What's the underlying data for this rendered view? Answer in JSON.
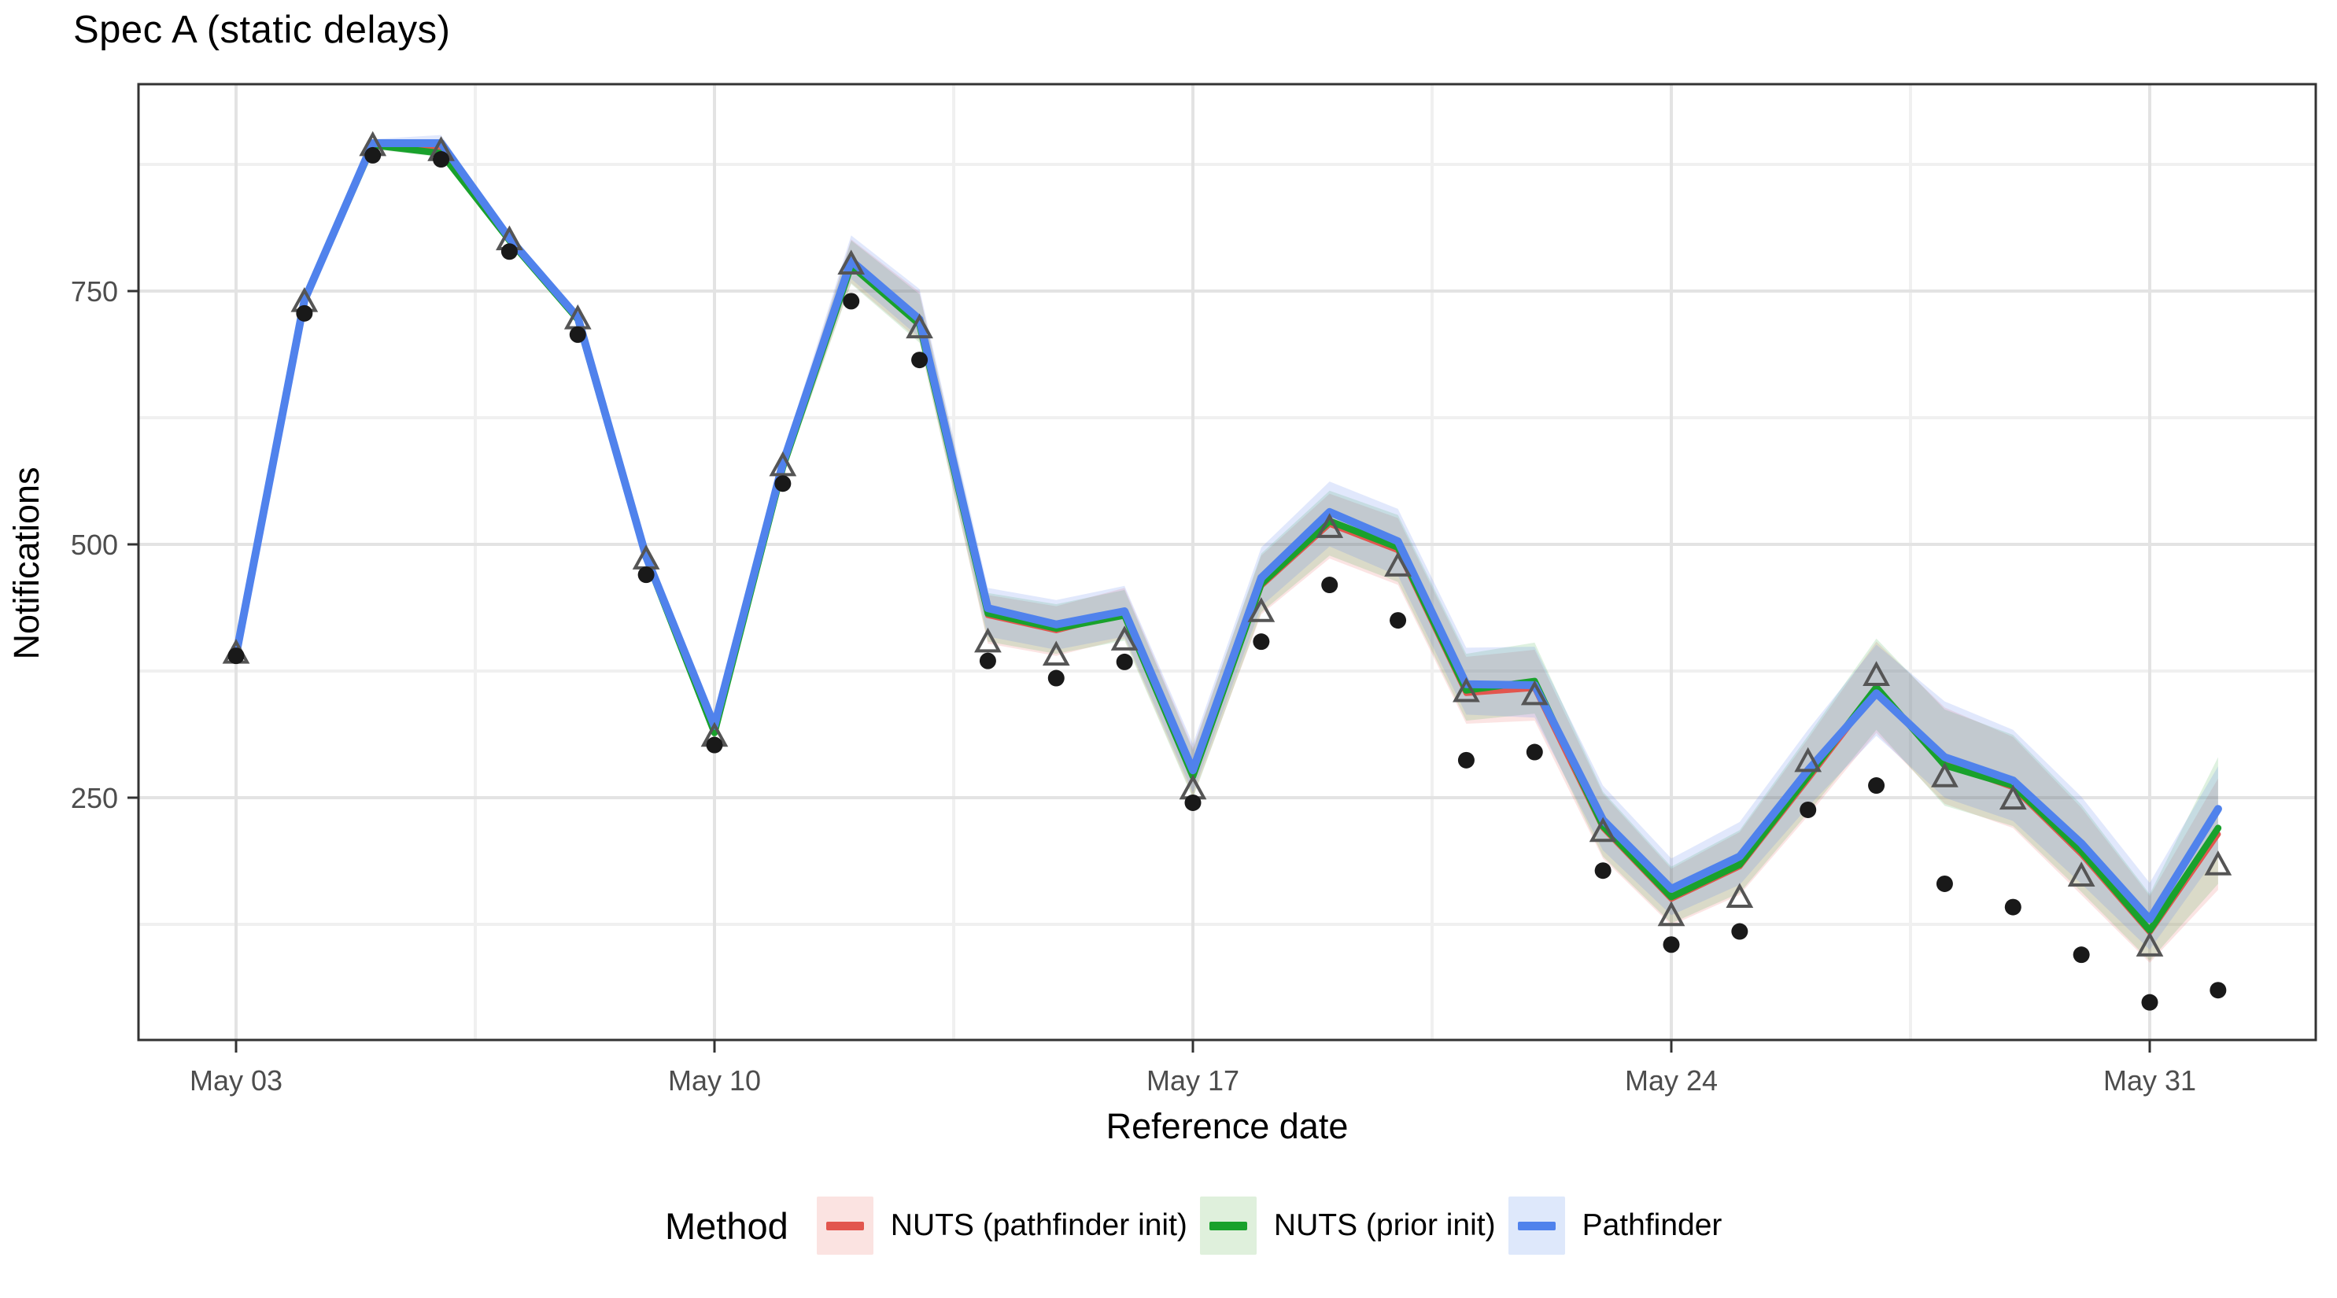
{
  "page": {
    "title": "Spec A (static delays)"
  },
  "chart_data": {
    "type": "line",
    "title": "Spec A (static delays)",
    "xlabel": "Reference date",
    "ylabel": "Notifications",
    "legend_title": "Method",
    "legend_position": "bottom",
    "grid": true,
    "ylim": [
      11,
      954
    ],
    "y_major_ticks": [
      250,
      500,
      750
    ],
    "y_minor_gridlines": [
      125,
      375,
      625,
      875
    ],
    "x_tick_labels": [
      "May 03",
      "May 10",
      "May 17",
      "May 24",
      "May 31"
    ],
    "x_tick_day_indices": [
      0,
      7,
      14,
      21,
      28
    ],
    "x_minor_day_offsets": [
      3.5,
      10.5,
      17.5,
      24.5
    ],
    "days": [
      "May 03",
      "May 04",
      "May 05",
      "May 06",
      "May 07",
      "May 08",
      "May 09",
      "May 10",
      "May 11",
      "May 12",
      "May 13",
      "May 14",
      "May 15",
      "May 16",
      "May 17",
      "May 18",
      "May 19",
      "May 20",
      "May 21",
      "May 22",
      "May 23",
      "May 24",
      "May 25",
      "May 26",
      "May 27",
      "May 28",
      "May 29",
      "May 30",
      "May 31",
      "Jun 01"
    ],
    "points": {
      "dots_name": "observed-notifications-dots",
      "dots": [
        390,
        728,
        884,
        880,
        789,
        707,
        470,
        302,
        560,
        740,
        682,
        385,
        368,
        384,
        245,
        404,
        460,
        425,
        287,
        295,
        178,
        105,
        118,
        238,
        262,
        165,
        142,
        95,
        48,
        60
      ],
      "triangles_name": "final-counts-triangles",
      "triangles": [
        392,
        739,
        893,
        888,
        800,
        722,
        485,
        310,
        577,
        776,
        713,
        403,
        390,
        405,
        258,
        433,
        516,
        478,
        354,
        351,
        216,
        133,
        151,
        285,
        370,
        270,
        248,
        172,
        103,
        183
      ]
    },
    "series": [
      {
        "name": "NUTS (pathfinder init)",
        "color": "#E2564E",
        "ribbon_fill": "rgba(228,86,78,0.16)",
        "legend_fill": "#FBE3E1",
        "line_width": 7,
        "values": [
          391,
          741,
          895,
          890,
          801,
          723,
          487,
          316,
          577,
          776,
          719,
          430,
          415,
          432,
          273,
          459,
          520,
          494,
          353,
          358,
          220,
          150,
          182,
          268,
          356,
          284,
          260,
          194,
          117,
          214
        ],
        "lower": [
          387,
          737,
          891,
          886,
          797,
          719,
          482,
          308,
          568,
          758,
          701,
          402,
          390,
          407,
          251,
          431,
          486,
          460,
          323,
          326,
          190,
          124,
          154,
          232,
          314,
          244,
          220,
          154,
          87,
          159
        ],
        "upper": [
          395,
          745,
          899,
          894,
          805,
          727,
          492,
          324,
          586,
          801,
          749,
          450,
          439,
          457,
          299,
          489,
          550,
          526,
          389,
          396,
          254,
          180,
          216,
          308,
          404,
          339,
          310,
          240,
          153,
          269
        ]
      },
      {
        "name": "NUTS (prior init)",
        "color": "#19A12C",
        "ribbon_fill": "rgba(34,160,44,0.15)",
        "legend_fill": "#DFF0DC",
        "line_width": 8.5,
        "values": [
          391,
          741,
          894,
          886,
          800,
          722,
          487,
          314,
          576,
          775,
          717,
          432,
          417,
          430,
          271,
          461,
          523,
          497,
          356,
          365,
          222,
          152,
          184,
          271,
          359,
          282,
          262,
          197,
          119,
          220
        ],
        "lower": [
          387,
          737,
          890,
          882,
          796,
          718,
          482,
          306,
          567,
          757,
          699,
          404,
          392,
          405,
          249,
          433,
          489,
          463,
          326,
          333,
          192,
          126,
          156,
          235,
          317,
          242,
          222,
          157,
          89,
          165
        ],
        "upper": [
          395,
          745,
          898,
          890,
          804,
          726,
          492,
          322,
          585,
          800,
          747,
          452,
          441,
          455,
          297,
          491,
          553,
          529,
          392,
          403,
          256,
          182,
          218,
          311,
          407,
          337,
          312,
          243,
          155,
          290
        ]
      },
      {
        "name": "Pathfinder",
        "color": "#5082EC",
        "ribbon_fill": "rgba(86,127,239,0.18)",
        "legend_fill": "#DEE8FB",
        "line_width": 10,
        "values": [
          391,
          741,
          896,
          896,
          802,
          724,
          488,
          321,
          580,
          780,
          722,
          437,
          421,
          434,
          277,
          467,
          532,
          503,
          362,
          361,
          228,
          160,
          192,
          277,
          353,
          290,
          267,
          205,
          130,
          239
        ],
        "lower": [
          387,
          737,
          892,
          892,
          798,
          720,
          483,
          313,
          571,
          762,
          704,
          409,
          396,
          409,
          255,
          439,
          498,
          469,
          332,
          329,
          198,
          134,
          164,
          241,
          311,
          250,
          227,
          165,
          100,
          194
        ],
        "upper": [
          395,
          745,
          900,
          904,
          806,
          728,
          493,
          329,
          589,
          805,
          752,
          457,
          445,
          459,
          303,
          497,
          562,
          535,
          398,
          399,
          262,
          190,
          226,
          317,
          401,
          345,
          317,
          251,
          166,
          281
        ]
      }
    ],
    "style": {
      "dot_color": "#191919",
      "triangle_color": "#555555",
      "grid_major_color": "#E3E3E3",
      "grid_minor_color": "#F0F0F0",
      "panel_border_color": "#333333",
      "tick_color": "#333333",
      "tick_label_color": "#4D4D4D"
    }
  }
}
